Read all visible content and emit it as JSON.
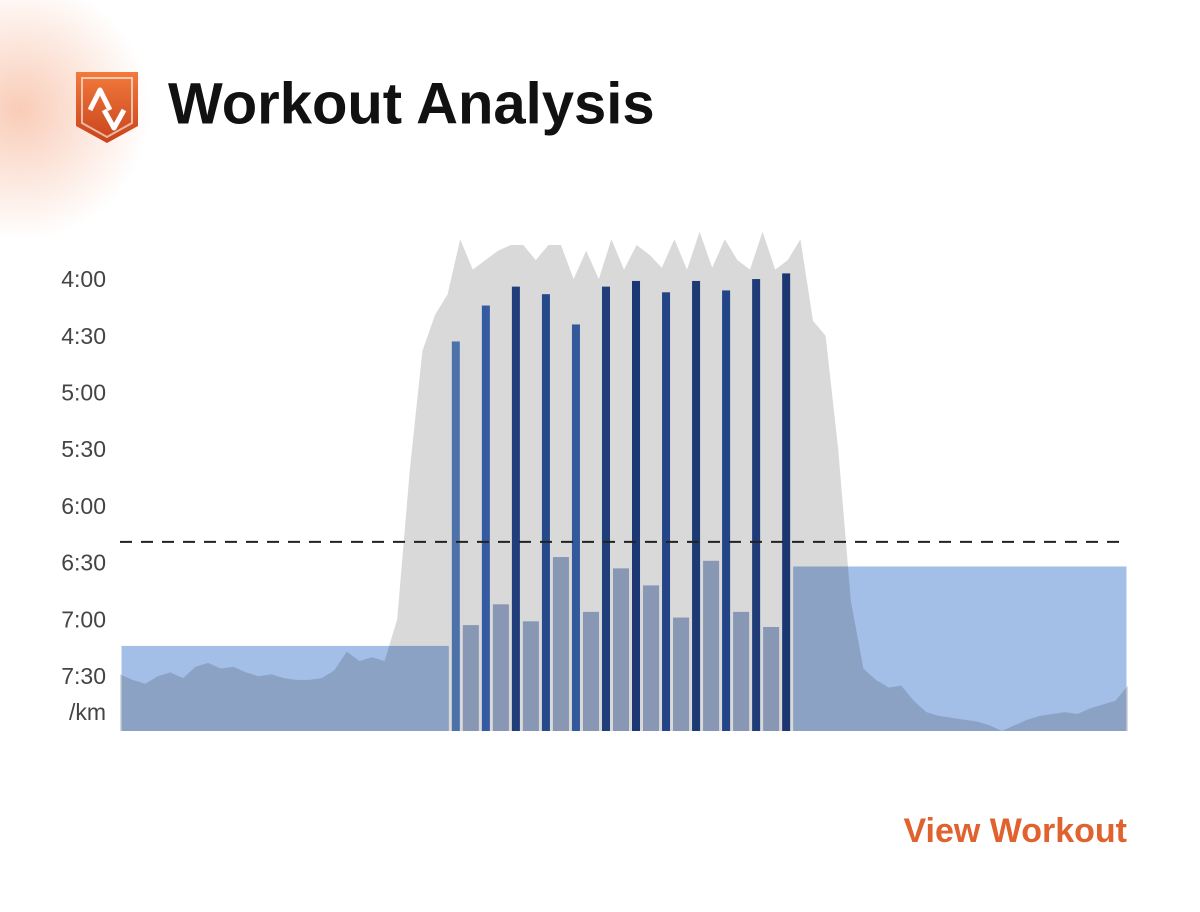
{
  "chart_data": {
    "type": "workout",
    "title": "Workout Analysis",
    "y_unit": "/km",
    "button": "View Workout",
    "ylim": [
      212,
      478
    ],
    "y_inverted": true,
    "yticks": [
      {
        "value": 240,
        "label": "4:00"
      },
      {
        "value": 270,
        "label": "4:30"
      },
      {
        "value": 300,
        "label": "5:00"
      },
      {
        "value": 330,
        "label": "5:30"
      },
      {
        "value": 360,
        "label": "6:00"
      },
      {
        "value": 390,
        "label": "6:30"
      },
      {
        "value": 420,
        "label": "7:00"
      },
      {
        "value": 450,
        "label": "7:30"
      }
    ],
    "target": 378,
    "pace": {
      "color": "#d9d9d9",
      "values": [
        448,
        451,
        453,
        449,
        447,
        450,
        444,
        442,
        445,
        444,
        447,
        449,
        448,
        450,
        451,
        451,
        450,
        446,
        436,
        441,
        439,
        441,
        419,
        340,
        277,
        258,
        247,
        218,
        234,
        229,
        224,
        221,
        221,
        229,
        221,
        221,
        239,
        224,
        239,
        218,
        234,
        221,
        226,
        233,
        218,
        234,
        214,
        233,
        218,
        229,
        234,
        214,
        234,
        229,
        218,
        261,
        269,
        329,
        409,
        445,
        451,
        455,
        454,
        462,
        468,
        470,
        471,
        472,
        473,
        475,
        478,
        475,
        472,
        470,
        469,
        468,
        469,
        466,
        464,
        462,
        454
      ]
    },
    "laps": {
      "durations": [
        1320,
        44,
        76,
        44,
        76,
        44,
        76,
        44,
        76,
        44,
        76,
        44,
        76,
        44,
        76,
        44,
        76,
        44,
        76,
        44,
        76,
        44,
        76,
        44,
        1344
      ],
      "values": [
        433,
        272,
        422,
        253,
        411,
        243,
        420,
        247,
        386,
        263,
        415,
        243,
        392,
        240,
        401,
        246,
        418,
        240,
        388,
        245,
        415,
        239,
        423,
        236,
        391
      ],
      "colors": [
        "#a3bfe8",
        "#5a86c8",
        "#9fb2d4",
        "#3d6bbd",
        "#9fb2d4",
        "#24488f",
        "#9fb2d4",
        "#2c55a3",
        "#9fb2d4",
        "#3a68b8",
        "#9fb2d4",
        "#24488f",
        "#9fb2d4",
        "#1f4088",
        "#9fb2d4",
        "#2a50a0",
        "#9fb2d4",
        "#22448a",
        "#9fb2d4",
        "#2a50a0",
        "#9fb2d4",
        "#24468d",
        "#9fb2d4",
        "#1f3f85",
        "#a3bfe8"
      ]
    }
  }
}
